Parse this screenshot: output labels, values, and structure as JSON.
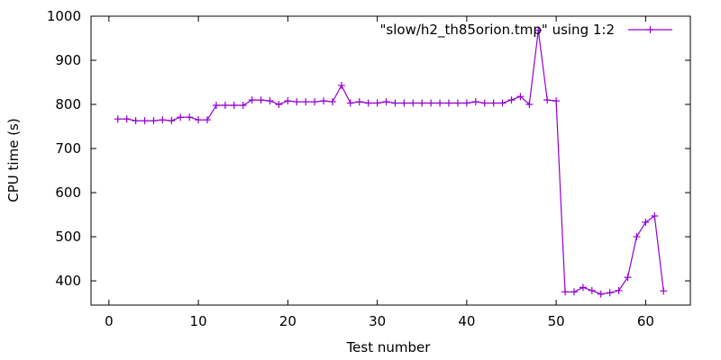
{
  "chart_data": {
    "type": "line",
    "xlabel": "Test number",
    "ylabel": "CPU time (s)",
    "xlim": [
      -2,
      65
    ],
    "ylim": [
      345,
      1000
    ],
    "xticks": [
      0,
      10,
      20,
      30,
      40,
      50,
      60
    ],
    "yticks": [
      400,
      500,
      600,
      700,
      800,
      900,
      1000
    ],
    "grid": false,
    "legend_position": "top-right",
    "series": [
      {
        "name": "\"slow/h2_th85orion.tmp\" using 1:2",
        "color": "#9400d3",
        "marker": "plus",
        "x": [
          1,
          2,
          3,
          4,
          5,
          6,
          7,
          8,
          9,
          10,
          11,
          12,
          13,
          14,
          15,
          16,
          17,
          18,
          19,
          20,
          21,
          22,
          23,
          24,
          25,
          26,
          27,
          28,
          29,
          30,
          31,
          32,
          33,
          34,
          35,
          36,
          37,
          38,
          39,
          40,
          41,
          42,
          43,
          44,
          45,
          46,
          47,
          48,
          49,
          50,
          51,
          52,
          53,
          54,
          55,
          56,
          57,
          58,
          59,
          60,
          61,
          62
        ],
        "values": [
          767,
          767,
          763,
          763,
          763,
          765,
          763,
          771,
          771,
          765,
          765,
          798,
          798,
          798,
          798,
          810,
          810,
          808,
          800,
          808,
          806,
          806,
          806,
          808,
          806,
          843,
          803,
          806,
          803,
          803,
          806,
          803,
          803,
          803,
          803,
          803,
          803,
          803,
          803,
          803,
          806,
          803,
          803,
          803,
          810,
          818,
          800,
          968,
          810,
          808,
          375,
          375,
          385,
          378,
          370,
          373,
          378,
          408,
          500,
          533,
          547,
          377
        ]
      }
    ]
  }
}
